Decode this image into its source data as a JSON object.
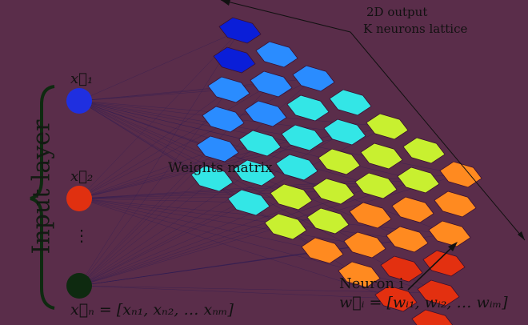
{
  "input_layer_label": "Input layer",
  "inputs": {
    "x1": "x⃗₁",
    "x2": "x⃗₂",
    "dots": "⋮",
    "xn": "x⃗ₙ = [xₙ₁, xₙ₂, … xₙₘ]"
  },
  "weights_label": "Weights matrix",
  "output": {
    "line1": "2D output",
    "line2": "K neurons lattice"
  },
  "neuron": {
    "title": "Neuron i",
    "weights": "w⃗ᵢ = [wᵢ₁, wᵢ₂, … wᵢₘ]"
  },
  "colors": {
    "background": "#5a2d4a",
    "node_x1": "#1f2fe0",
    "node_x2": "#e03010",
    "node_xn": "#0e2a10",
    "brace": "#0e2a10",
    "connections": "#2a1a55"
  },
  "lattice_palette": [
    "#0a1ed8",
    "#2a8cff",
    "#33e6e6",
    "#c8f030",
    "#ff8a20",
    "#e33010"
  ]
}
